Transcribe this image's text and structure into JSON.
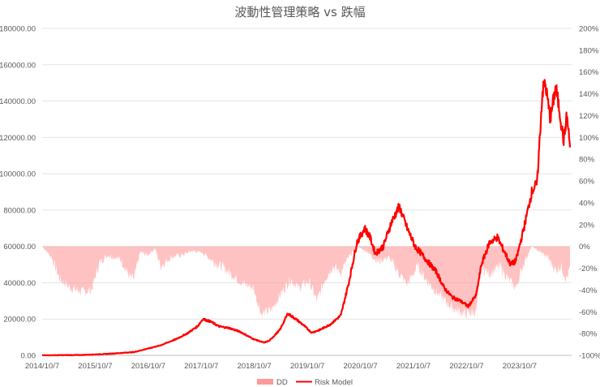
{
  "chart_data": {
    "type": "line",
    "title": "波動性管理策略 vs 跌幅",
    "x_ticks": [
      "2014/10/7",
      "2015/10/7",
      "2016/10/7",
      "2017/10/7",
      "2018/10/7",
      "2019/10/7",
      "2020/10/7",
      "2021/10/7",
      "2022/10/7",
      "2023/10/7"
    ],
    "y_left": {
      "ylim": [
        0,
        180000
      ],
      "ticks": [
        "0.00",
        "20000.00",
        "40000.00",
        "60000.00",
        "80000.00",
        "100000.00",
        "120000.00",
        "140000.00",
        "160000.00",
        "180000.00"
      ]
    },
    "y_right": {
      "ylim": [
        -100,
        200
      ],
      "unit": "%",
      "ticks": [
        "-100%",
        "-80%",
        "-60%",
        "-40%",
        "-20%",
        "0%",
        "20%",
        "40%",
        "60%",
        "80%",
        "100%",
        "120%",
        "140%",
        "160%",
        "180%",
        "200%"
      ]
    },
    "grid": true,
    "legend": "bottom",
    "series": [
      {
        "name": "DD",
        "axis": "right",
        "kind": "area",
        "color": "#ff9999",
        "points": [
          [
            2014.77,
            0
          ],
          [
            2014.95,
            -10
          ],
          [
            2015.1,
            -30
          ],
          [
            2015.3,
            -38
          ],
          [
            2015.55,
            -42
          ],
          [
            2015.7,
            -40
          ],
          [
            2015.85,
            -15
          ],
          [
            2016.0,
            -8
          ],
          [
            2016.25,
            -12
          ],
          [
            2016.42,
            -28
          ],
          [
            2016.5,
            -30
          ],
          [
            2016.62,
            -5
          ],
          [
            2016.75,
            -8
          ],
          [
            2016.9,
            -2
          ],
          [
            2017.0,
            -18
          ],
          [
            2017.2,
            -10
          ],
          [
            2017.4,
            -8
          ],
          [
            2017.6,
            -4
          ],
          [
            2017.8,
            -6
          ],
          [
            2018.0,
            -14
          ],
          [
            2018.2,
            -20
          ],
          [
            2018.4,
            -28
          ],
          [
            2018.55,
            -34
          ],
          [
            2018.75,
            -38
          ],
          [
            2018.9,
            -62
          ],
          [
            2019.1,
            -58
          ],
          [
            2019.25,
            -45
          ],
          [
            2019.45,
            -30
          ],
          [
            2019.6,
            -38
          ],
          [
            2019.8,
            -32
          ],
          [
            2019.95,
            -50
          ],
          [
            2020.1,
            -30
          ],
          [
            2020.25,
            -18
          ],
          [
            2020.4,
            -24
          ],
          [
            2020.55,
            -10
          ],
          [
            2020.7,
            0
          ],
          [
            2020.9,
            -5
          ],
          [
            2021.1,
            -14
          ],
          [
            2021.3,
            -10
          ],
          [
            2021.5,
            -25
          ],
          [
            2021.65,
            -35
          ],
          [
            2021.85,
            -18
          ],
          [
            2022.0,
            -30
          ],
          [
            2022.2,
            -42
          ],
          [
            2022.4,
            -52
          ],
          [
            2022.55,
            -58
          ],
          [
            2022.75,
            -62
          ],
          [
            2022.95,
            -60
          ],
          [
            2023.05,
            -20
          ],
          [
            2023.2,
            -25
          ],
          [
            2023.4,
            -18
          ],
          [
            2023.55,
            -30
          ],
          [
            2023.7,
            -38
          ],
          [
            2023.85,
            -15
          ],
          [
            2024.0,
            0
          ],
          [
            2024.15,
            -5
          ],
          [
            2024.3,
            -10
          ],
          [
            2024.45,
            -22
          ],
          [
            2024.55,
            -18
          ],
          [
            2024.65,
            -30
          ],
          [
            2024.72,
            -20
          ]
        ]
      },
      {
        "name": "Risk Model",
        "axis": "left",
        "kind": "line",
        "color": "#ff0000",
        "points": [
          [
            2014.77,
            0
          ],
          [
            2015.5,
            200
          ],
          [
            2016.0,
            800
          ],
          [
            2016.5,
            1800
          ],
          [
            2016.8,
            4000
          ],
          [
            2017.0,
            5500
          ],
          [
            2017.3,
            9000
          ],
          [
            2017.5,
            12000
          ],
          [
            2017.7,
            16000
          ],
          [
            2017.8,
            20000
          ],
          [
            2017.95,
            18500
          ],
          [
            2018.1,
            16000
          ],
          [
            2018.3,
            15000
          ],
          [
            2018.5,
            13000
          ],
          [
            2018.75,
            9000
          ],
          [
            2018.95,
            7000
          ],
          [
            2019.05,
            8000
          ],
          [
            2019.25,
            14000
          ],
          [
            2019.4,
            23000
          ],
          [
            2019.55,
            20000
          ],
          [
            2019.7,
            16500
          ],
          [
            2019.85,
            12500
          ],
          [
            2020.0,
            14000
          ],
          [
            2020.2,
            17000
          ],
          [
            2020.4,
            22000
          ],
          [
            2020.55,
            40000
          ],
          [
            2020.7,
            62000
          ],
          [
            2020.85,
            70000
          ],
          [
            2020.95,
            65000
          ],
          [
            2021.05,
            56000
          ],
          [
            2021.2,
            60000
          ],
          [
            2021.35,
            73000
          ],
          [
            2021.5,
            82000
          ],
          [
            2021.65,
            70000
          ],
          [
            2021.8,
            60000
          ],
          [
            2022.0,
            53000
          ],
          [
            2022.2,
            46000
          ],
          [
            2022.35,
            37000
          ],
          [
            2022.5,
            32000
          ],
          [
            2022.65,
            30000
          ],
          [
            2022.8,
            27000
          ],
          [
            2022.95,
            33000
          ],
          [
            2023.05,
            50000
          ],
          [
            2023.2,
            62000
          ],
          [
            2023.35,
            65000
          ],
          [
            2023.5,
            56000
          ],
          [
            2023.6,
            50000
          ],
          [
            2023.7,
            52000
          ],
          [
            2023.85,
            70000
          ],
          [
            2024.0,
            90000
          ],
          [
            2024.1,
            95000
          ],
          [
            2024.2,
            145000
          ],
          [
            2024.25,
            150000
          ],
          [
            2024.35,
            130000
          ],
          [
            2024.45,
            148000
          ],
          [
            2024.52,
            135000
          ],
          [
            2024.6,
            118000
          ],
          [
            2024.66,
            132000
          ],
          [
            2024.72,
            115000
          ]
        ]
      }
    ]
  }
}
